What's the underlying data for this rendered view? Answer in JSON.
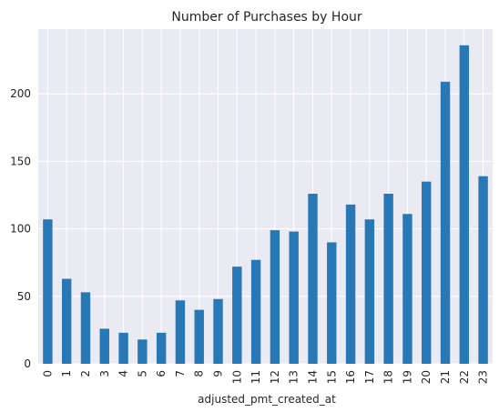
{
  "chart_data": {
    "type": "bar",
    "title": "Number of Purchases by Hour",
    "xlabel": "adjusted_pmt_created_at",
    "ylabel": "",
    "categories": [
      "0",
      "1",
      "2",
      "3",
      "4",
      "5",
      "6",
      "7",
      "8",
      "9",
      "10",
      "11",
      "12",
      "13",
      "14",
      "15",
      "16",
      "17",
      "18",
      "19",
      "20",
      "21",
      "22",
      "23"
    ],
    "values": [
      107,
      63,
      53,
      26,
      23,
      18,
      23,
      47,
      40,
      48,
      72,
      77,
      99,
      98,
      126,
      90,
      118,
      107,
      126,
      111,
      135,
      209,
      236,
      139
    ],
    "ylim": [
      0,
      248
    ],
    "yticks": [
      0,
      50,
      100,
      150,
      200
    ],
    "grid": true,
    "colors": {
      "bar": "#2878b5",
      "background": "#eaeaf2",
      "grid": "#ffffff"
    }
  }
}
